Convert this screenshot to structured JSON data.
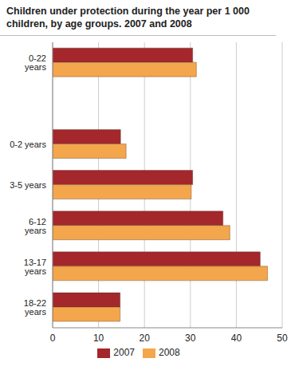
{
  "chart_data": {
    "type": "bar",
    "orientation": "horizontal",
    "title": "Children under protection during the year per 1 000 children, by age groups. 2007 and 2008",
    "categories": [
      "0-22 years",
      null,
      "0-2 years",
      "3-5 years",
      "6-12 years",
      "13-17 years",
      "18-22 years"
    ],
    "series": [
      {
        "name": "2007",
        "color": "#a3272b",
        "values": [
          30.5,
          null,
          14.8,
          30.5,
          37.1,
          45.2,
          14.7
        ]
      },
      {
        "name": "2008",
        "color": "#f4a64c",
        "values": [
          31.3,
          null,
          16.0,
          30.2,
          38.6,
          46.8,
          14.7
        ]
      }
    ],
    "xlim": [
      0,
      50
    ],
    "xticks": [
      0,
      10,
      20,
      30,
      40,
      50
    ],
    "grid": true,
    "legend": "bottom"
  }
}
